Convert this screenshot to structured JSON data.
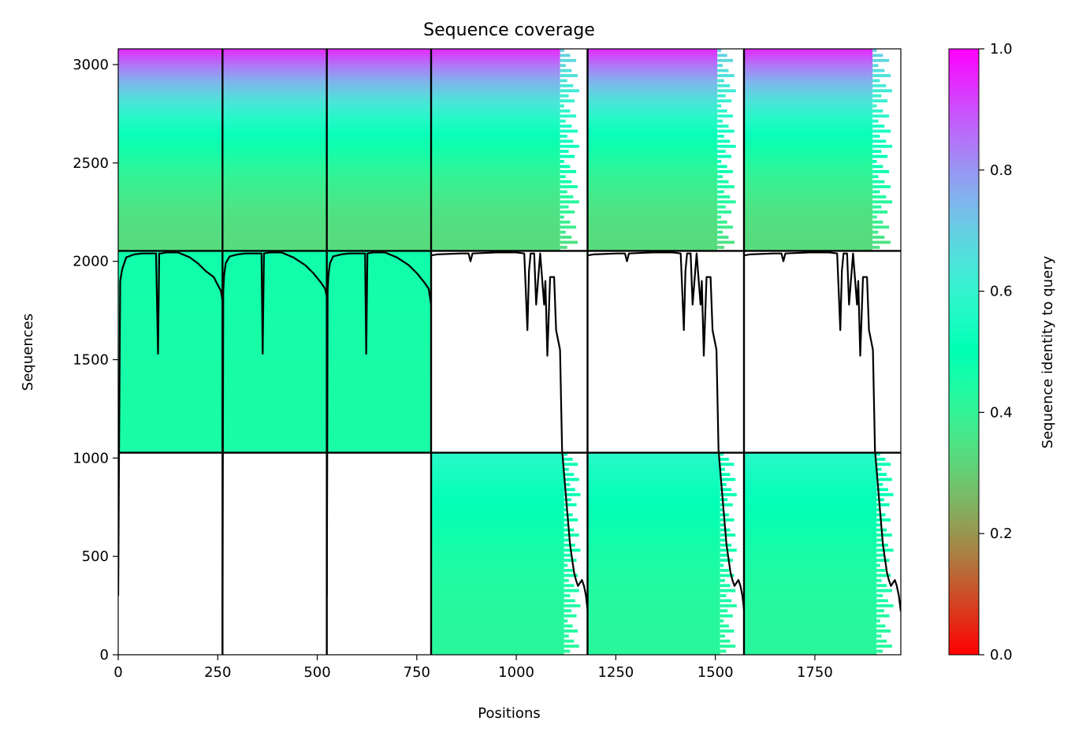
{
  "chart_data": {
    "type": "heatmap",
    "title": "Sequence coverage",
    "xlabel": "Positions",
    "ylabel": "Sequences",
    "xlim": [
      0,
      1966
    ],
    "ylim": [
      0,
      3080
    ],
    "x_ticks": [
      0,
      250,
      500,
      750,
      1000,
      1250,
      1500,
      1750
    ],
    "y_ticks": [
      0,
      500,
      1000,
      1500,
      2000,
      2500,
      3000
    ],
    "colorbar": {
      "label": "Sequence identity to query",
      "colormap": "rainbow_r",
      "range": [
        0,
        1
      ],
      "ticks": [
        0.0,
        0.2,
        0.4,
        0.6,
        0.8,
        1.0
      ],
      "tick_labels": [
        "0.0",
        "0.2",
        "0.4",
        "0.6",
        "0.8",
        "1.0"
      ]
    },
    "chain_boundaries": [
      262,
      524,
      786,
      1179,
      1572
    ],
    "row_group_boundaries": [
      1027,
      2053
    ],
    "blocks": [
      {
        "x": [
          0,
          262
        ],
        "y": [
          1027,
          2053
        ],
        "identity_bottom": 0.45,
        "identity_top": 0.47
      },
      {
        "x": [
          262,
          524
        ],
        "y": [
          1027,
          2053
        ],
        "identity_bottom": 0.45,
        "identity_top": 0.47
      },
      {
        "x": [
          524,
          786
        ],
        "y": [
          1027,
          2053
        ],
        "identity_bottom": 0.45,
        "identity_top": 0.47
      },
      {
        "x": [
          0,
          262
        ],
        "y": [
          2053,
          3080
        ],
        "identity_bottom": 0.33,
        "identity_top": 0.95
      },
      {
        "x": [
          262,
          524
        ],
        "y": [
          2053,
          3080
        ],
        "identity_bottom": 0.33,
        "identity_top": 0.95
      },
      {
        "x": [
          524,
          786
        ],
        "y": [
          2053,
          3080
        ],
        "identity_bottom": 0.33,
        "identity_top": 0.95
      },
      {
        "x": [
          786,
          1179
        ],
        "y": [
          2053,
          3080
        ],
        "identity_bottom": 0.33,
        "identity_top": 0.95,
        "coverage_end": 1110
      },
      {
        "x": [
          1179,
          1572
        ],
        "y": [
          2053,
          3080
        ],
        "identity_bottom": 0.33,
        "identity_top": 0.95,
        "coverage_end": 1505
      },
      {
        "x": [
          1572,
          1966
        ],
        "y": [
          2053,
          3080
        ],
        "identity_bottom": 0.33,
        "identity_top": 0.95,
        "coverage_end": 1895
      },
      {
        "x": [
          786,
          1179
        ],
        "y": [
          0,
          1027
        ],
        "identity_bottom": 0.42,
        "identity_top": 0.58,
        "coverage_end": 1120
      },
      {
        "x": [
          1179,
          1572
        ],
        "y": [
          0,
          1027
        ],
        "identity_bottom": 0.42,
        "identity_top": 0.58,
        "coverage_end": 1512
      },
      {
        "x": [
          1572,
          1966
        ],
        "y": [
          0,
          1027
        ],
        "identity_bottom": 0.42,
        "identity_top": 0.58,
        "coverage_end": 1905
      }
    ],
    "coverage_line": [
      {
        "x": [
          0,
          2,
          5,
          10,
          20,
          40,
          60,
          80,
          95,
          100,
          103,
          108,
          120,
          150,
          180,
          200,
          220,
          240,
          250,
          258,
          262
        ],
        "y": [
          300,
          1000,
          1900,
          1960,
          2020,
          2035,
          2040,
          2040,
          2040,
          1530,
          2040,
          2040,
          2045,
          2045,
          2020,
          1990,
          1950,
          1920,
          1880,
          1850,
          1800
        ]
      },
      {
        "x": [
          262,
          263,
          264,
          266,
          270,
          280,
          300,
          320,
          350,
          360,
          363,
          366,
          380,
          410,
          440,
          470,
          490,
          510,
          520,
          524
        ],
        "y": [
          20,
          1000,
          1850,
          1930,
          1990,
          2025,
          2035,
          2040,
          2040,
          2040,
          1530,
          2040,
          2045,
          2045,
          2020,
          1980,
          1940,
          1890,
          1860,
          1820
        ]
      },
      {
        "x": [
          524,
          525,
          526,
          528,
          532,
          540,
          560,
          580,
          610,
          620,
          623,
          626,
          640,
          670,
          700,
          730,
          750,
          770,
          780,
          786
        ],
        "y": [
          300,
          1000,
          1850,
          1930,
          1990,
          2025,
          2035,
          2040,
          2040,
          2040,
          1530,
          2040,
          2045,
          2045,
          2020,
          1980,
          1940,
          1890,
          1860,
          1780
        ]
      },
      {
        "x": [
          786,
          800,
          860,
          880,
          885,
          890,
          950,
          1000,
          1020,
          1028,
          1032,
          1036,
          1045,
          1050,
          1060,
          1070,
          1073,
          1078,
          1085,
          1090,
          1095,
          1100,
          1110,
          1115,
          1125,
          1135,
          1145,
          1150,
          1155,
          1165,
          1170,
          1175,
          1179
        ],
        "y": [
          2030,
          2035,
          2040,
          2040,
          2000,
          2040,
          2045,
          2045,
          2040,
          1650,
          1950,
          2040,
          2040,
          1780,
          2040,
          1780,
          1900,
          1520,
          1920,
          1920,
          1920,
          1650,
          1550,
          1040,
          800,
          560,
          420,
          380,
          350,
          380,
          350,
          300,
          230
        ]
      },
      {
        "x": [
          1179,
          1193,
          1253,
          1273,
          1278,
          1283,
          1343,
          1393,
          1413,
          1421,
          1425,
          1429,
          1438,
          1443,
          1453,
          1463,
          1466,
          1471,
          1478,
          1483,
          1488,
          1493,
          1503,
          1508,
          1518,
          1528,
          1538,
          1543,
          1548,
          1558,
          1563,
          1568,
          1572
        ],
        "y": [
          2030,
          2035,
          2040,
          2040,
          2000,
          2040,
          2045,
          2045,
          2040,
          1650,
          1950,
          2040,
          2040,
          1780,
          2040,
          1780,
          1900,
          1520,
          1920,
          1920,
          1920,
          1650,
          1550,
          1040,
          800,
          560,
          420,
          380,
          350,
          380,
          350,
          300,
          230
        ]
      },
      {
        "x": [
          1572,
          1586,
          1646,
          1666,
          1671,
          1676,
          1736,
          1786,
          1806,
          1814,
          1818,
          1822,
          1831,
          1836,
          1846,
          1856,
          1859,
          1864,
          1871,
          1876,
          1881,
          1886,
          1896,
          1901,
          1911,
          1921,
          1931,
          1936,
          1941,
          1951,
          1956,
          1961,
          1966
        ],
        "y": [
          2030,
          2035,
          2040,
          2040,
          2000,
          2040,
          2045,
          2045,
          2040,
          1650,
          1950,
          2040,
          2040,
          1780,
          2040,
          1780,
          1900,
          1520,
          1920,
          1920,
          1920,
          1650,
          1550,
          1040,
          800,
          560,
          420,
          380,
          350,
          380,
          350,
          300,
          220
        ]
      }
    ]
  }
}
